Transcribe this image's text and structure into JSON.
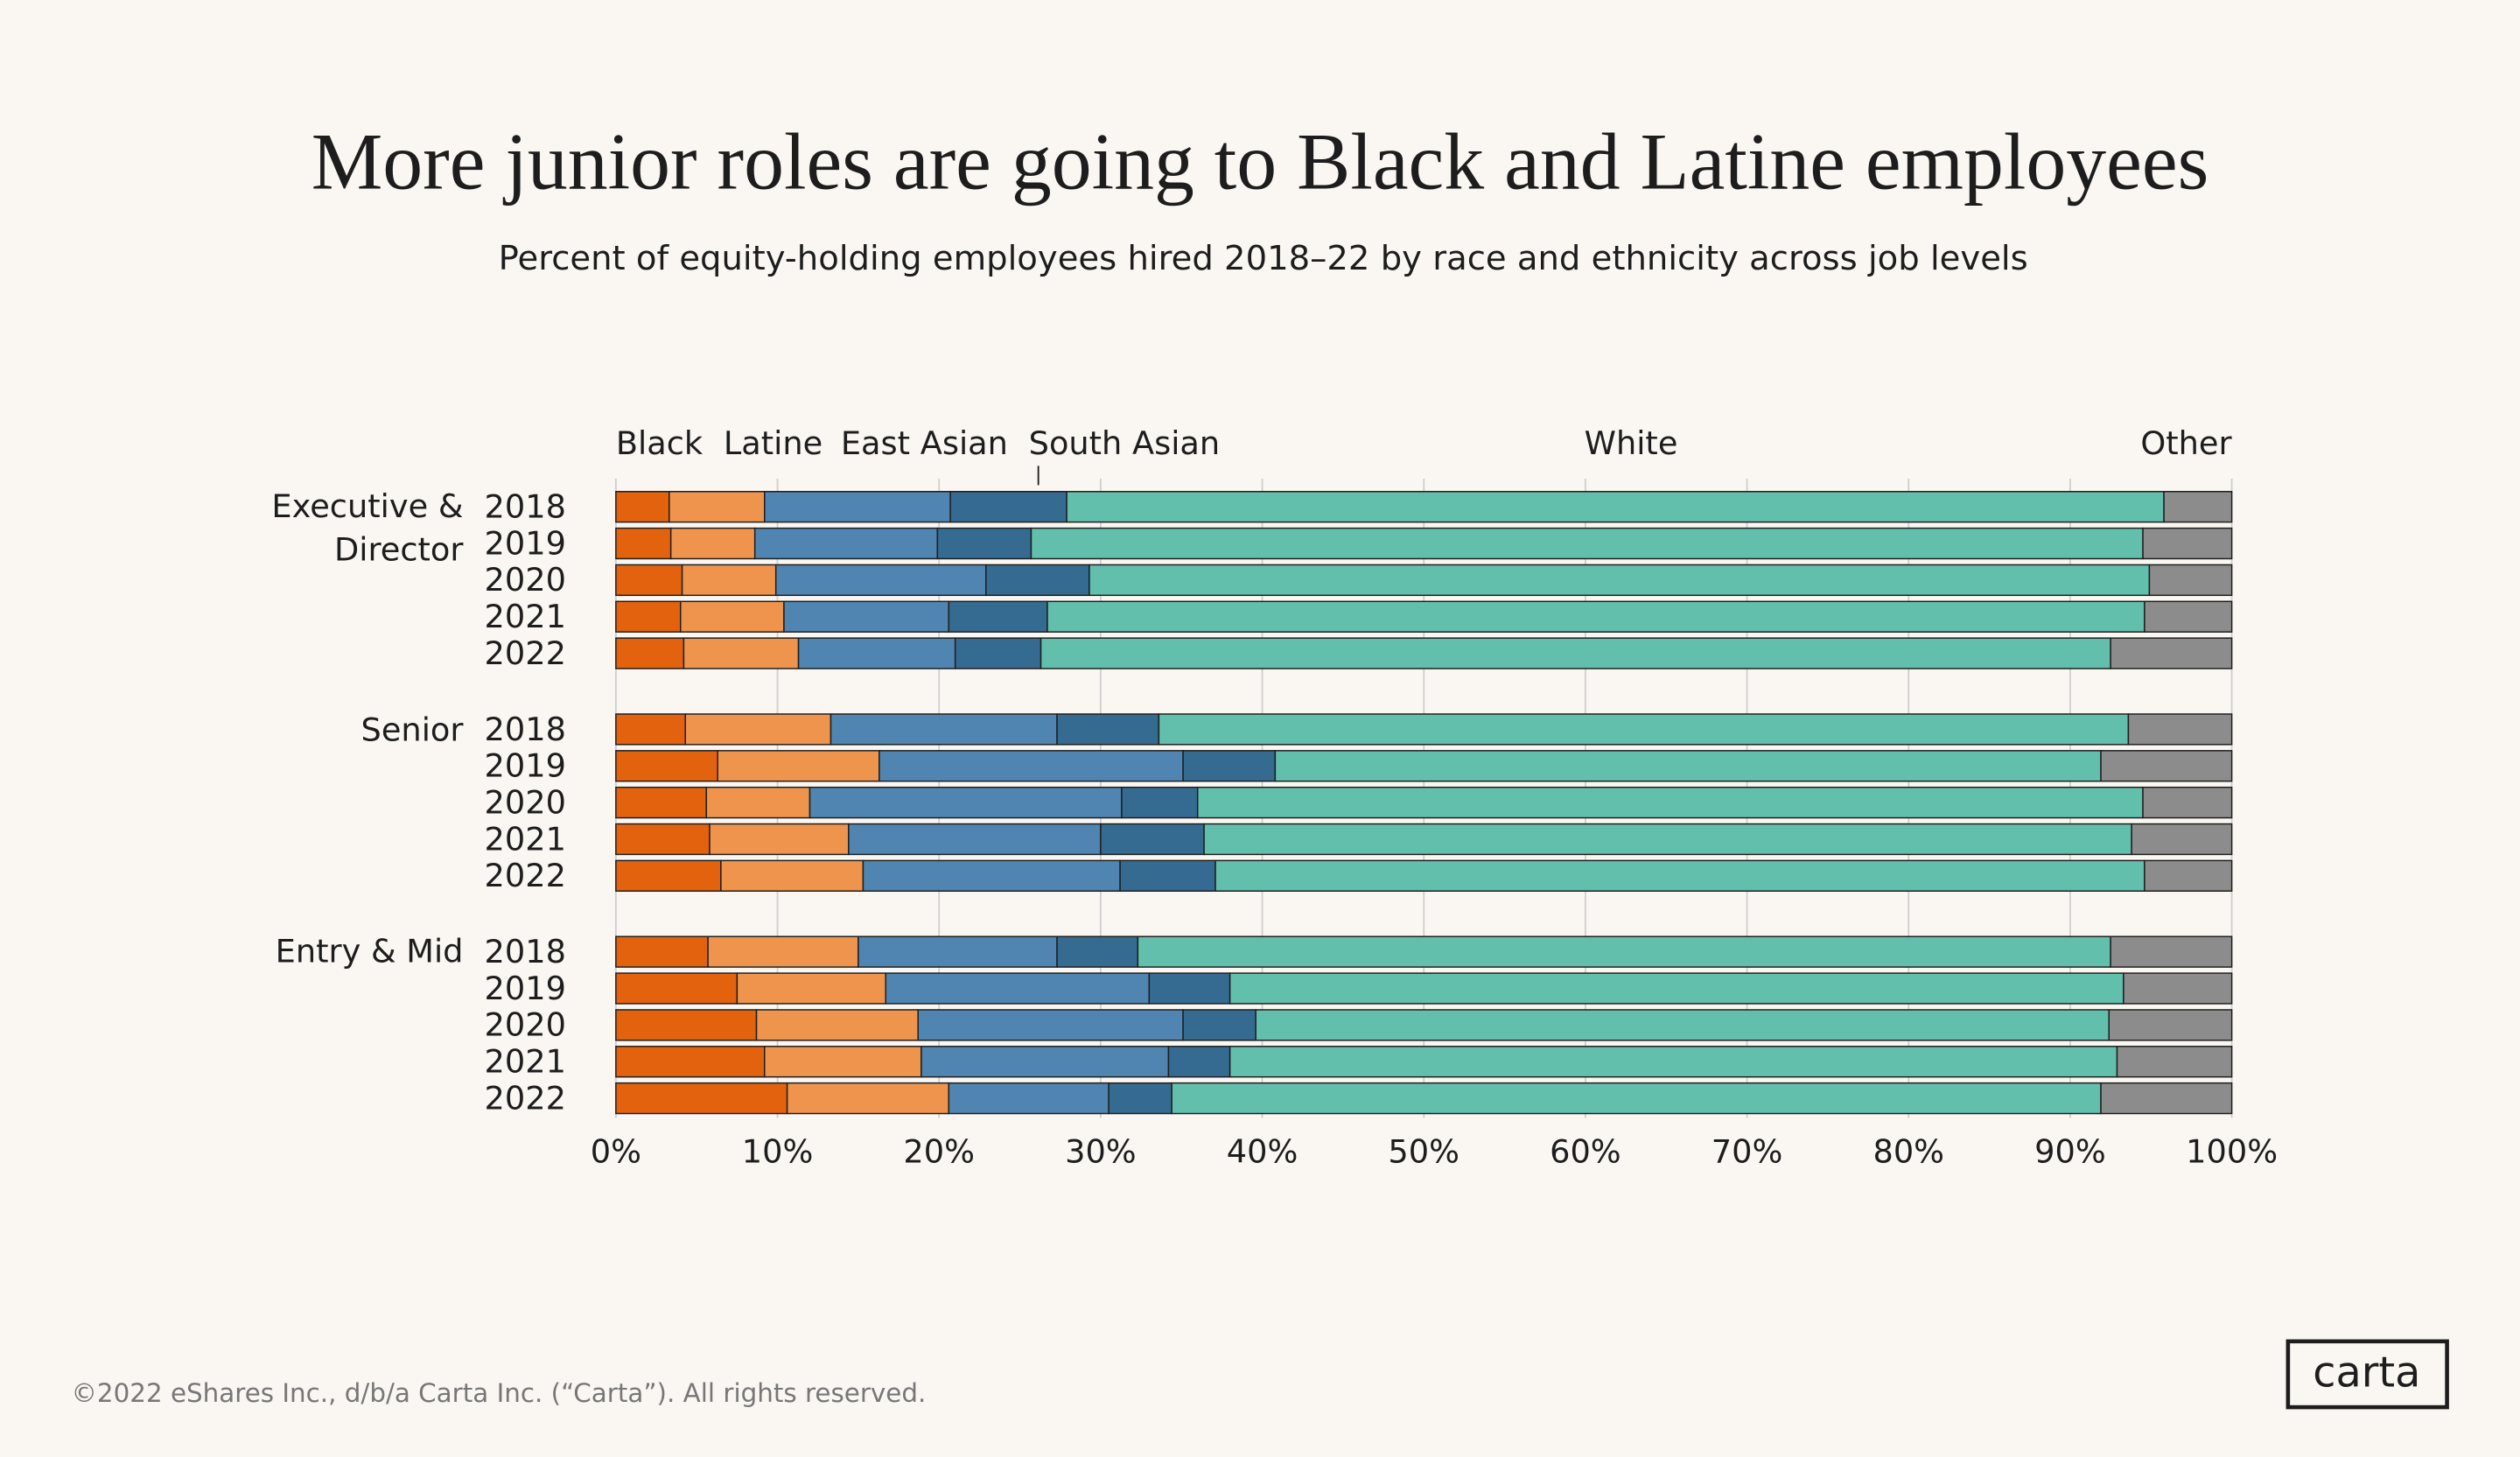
{
  "chart_data": {
    "type": "stacked-bar-horizontal",
    "title": "More junior roles are going to Black and Latine employees",
    "subtitle": "Percent of equity-holding employees hired 2018–22 by race and ethnicity across job levels",
    "groups": [
      {
        "name": "Executive & Director",
        "categories": [
          "2018",
          "2019",
          "2020",
          "2021",
          "2022"
        ]
      },
      {
        "name": "Senior",
        "categories": [
          "2018",
          "2019",
          "2020",
          "2021",
          "2022"
        ]
      },
      {
        "name": "Entry & Mid",
        "categories": [
          "2018",
          "2019",
          "2020",
          "2021",
          "2022"
        ]
      }
    ],
    "series": [
      {
        "name": "Black",
        "color": "#e3620e",
        "values": [
          [
            3.3,
            3.4,
            4.1,
            4.0,
            4.2
          ],
          [
            4.3,
            6.3,
            5.6,
            5.8,
            6.5
          ],
          [
            5.7,
            7.5,
            8.7,
            9.2,
            10.6
          ]
        ]
      },
      {
        "name": "Latine",
        "color": "#ee944d",
        "values": [
          [
            5.9,
            5.2,
            5.8,
            6.4,
            7.1
          ],
          [
            9.0,
            10.0,
            6.4,
            8.6,
            8.8
          ],
          [
            9.3,
            9.2,
            10.0,
            9.7,
            10.0
          ]
        ]
      },
      {
        "name": "East Asian",
        "color": "#4f85b0",
        "values": [
          [
            11.5,
            11.3,
            13.0,
            10.2,
            9.7
          ],
          [
            14.0,
            18.8,
            19.3,
            15.6,
            15.9
          ],
          [
            12.3,
            16.3,
            16.4,
            15.3,
            9.9
          ]
        ]
      },
      {
        "name": "South Asian",
        "color": "#356b91",
        "values": [
          [
            7.2,
            5.8,
            6.4,
            6.1,
            5.3
          ],
          [
            6.3,
            5.7,
            4.7,
            6.4,
            5.9
          ],
          [
            5.0,
            5.0,
            4.5,
            3.8,
            3.9
          ]
        ]
      },
      {
        "name": "White",
        "color": "#62bfac",
        "values": [
          [
            67.9,
            68.8,
            65.6,
            67.9,
            66.2
          ],
          [
            60.0,
            51.1,
            58.5,
            57.4,
            57.5
          ],
          [
            60.2,
            55.3,
            52.8,
            54.9,
            57.5
          ]
        ]
      },
      {
        "name": "Other",
        "color": "#8c8c8c",
        "values": [
          [
            4.2,
            5.5,
            5.1,
            5.4,
            7.5
          ],
          [
            6.4,
            8.1,
            5.5,
            6.2,
            5.4
          ],
          [
            7.5,
            6.7,
            7.6,
            7.1,
            8.1
          ]
        ]
      }
    ],
    "xlim": [
      0,
      100
    ],
    "xticks": [
      {
        "value": 0,
        "label": "0%"
      },
      {
        "value": 10,
        "label": "10%"
      },
      {
        "value": 20,
        "label": "20%"
      },
      {
        "value": 30,
        "label": "30%"
      },
      {
        "value": 40,
        "label": "40%"
      },
      {
        "value": 50,
        "label": "50%"
      },
      {
        "value": 60,
        "label": "60%"
      },
      {
        "value": 70,
        "label": "70%"
      },
      {
        "value": 80,
        "label": "80%"
      },
      {
        "value": 90,
        "label": "90%"
      },
      {
        "value": 100,
        "label": "100%"
      }
    ],
    "grid": true,
    "footer": "©2022 eShares Inc., d/b/a Carta Inc. (“Carta”). All rights reserved.",
    "logo": "carta"
  }
}
